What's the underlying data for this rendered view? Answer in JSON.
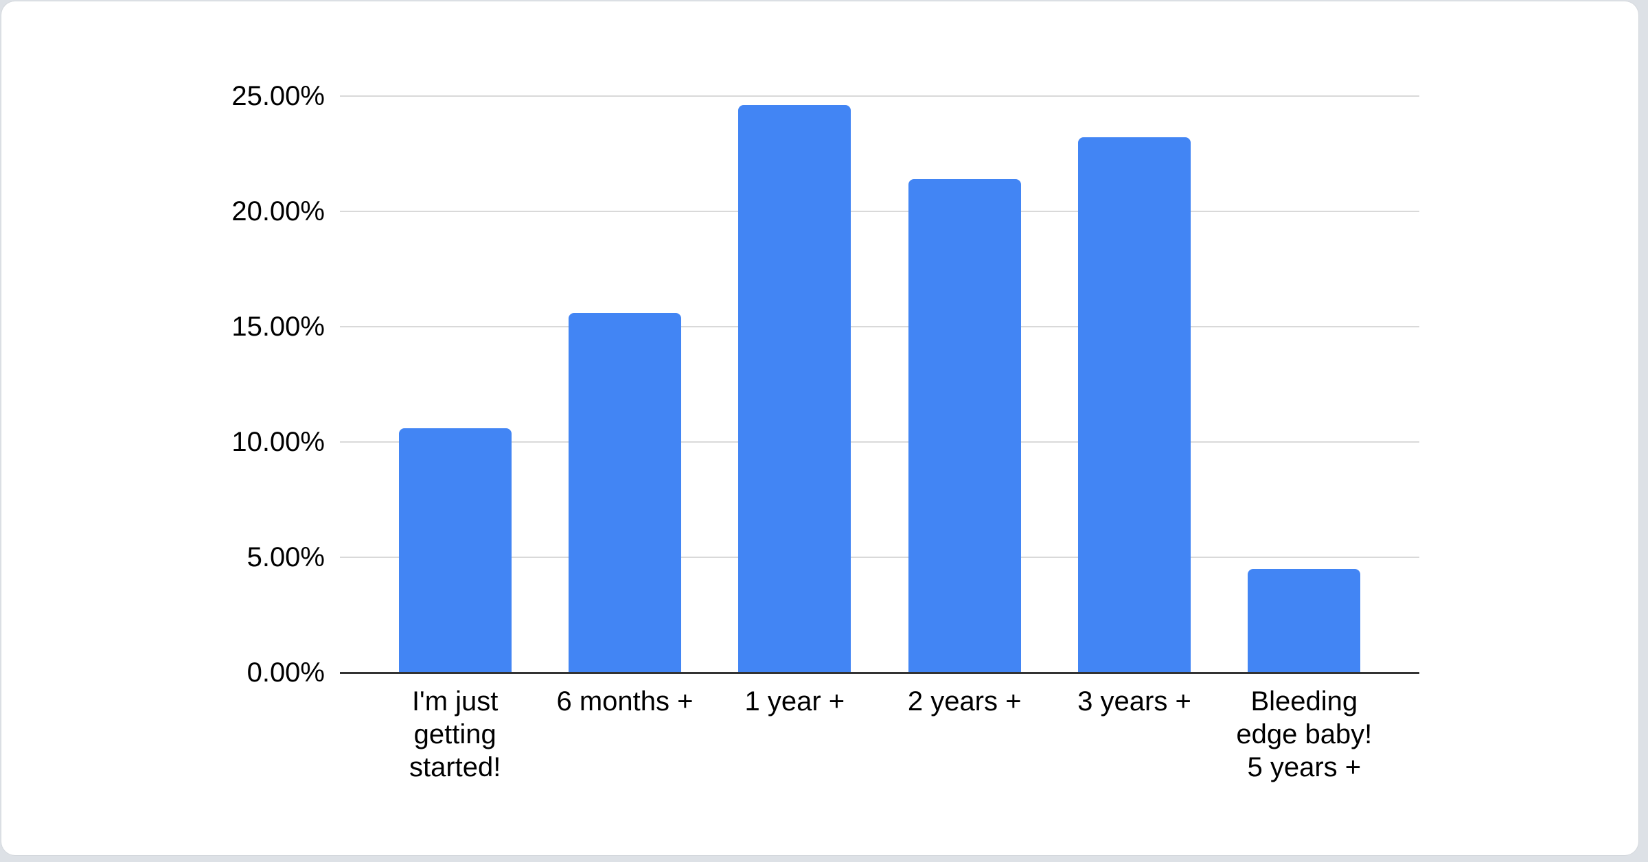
{
  "page": {
    "background_color": "#dde1e6",
    "card_background_color": "#ffffff"
  },
  "chart_data": {
    "type": "bar",
    "title": "",
    "categories": [
      "I'm just getting started!",
      "6 months +",
      "1 year +",
      "2 years +",
      "3 years +",
      "Bleeding edge baby! 5 years +"
    ],
    "category_lines": [
      [
        "I'm just",
        "getting",
        "started!"
      ],
      [
        "6 months +"
      ],
      [
        "1 year +"
      ],
      [
        "2 years +"
      ],
      [
        "3 years +"
      ],
      [
        "Bleeding",
        "edge baby!",
        "5 years +"
      ]
    ],
    "values": [
      10.6,
      15.6,
      24.6,
      21.4,
      23.2,
      4.5
    ],
    "value_unit": "%",
    "xlabel": "",
    "ylabel": "",
    "ylim": [
      0,
      25
    ],
    "y_tick_step": 5,
    "y_tick_labels": [
      "0.00%",
      "5.00%",
      "10.00%",
      "15.00%",
      "20.00%",
      "25.00%"
    ],
    "grid": true,
    "legend_position": "none",
    "bar_color": "#4285f4",
    "grid_color": "#d9d9d9",
    "axis_line_color": "#333333",
    "label_color": "#000000"
  }
}
